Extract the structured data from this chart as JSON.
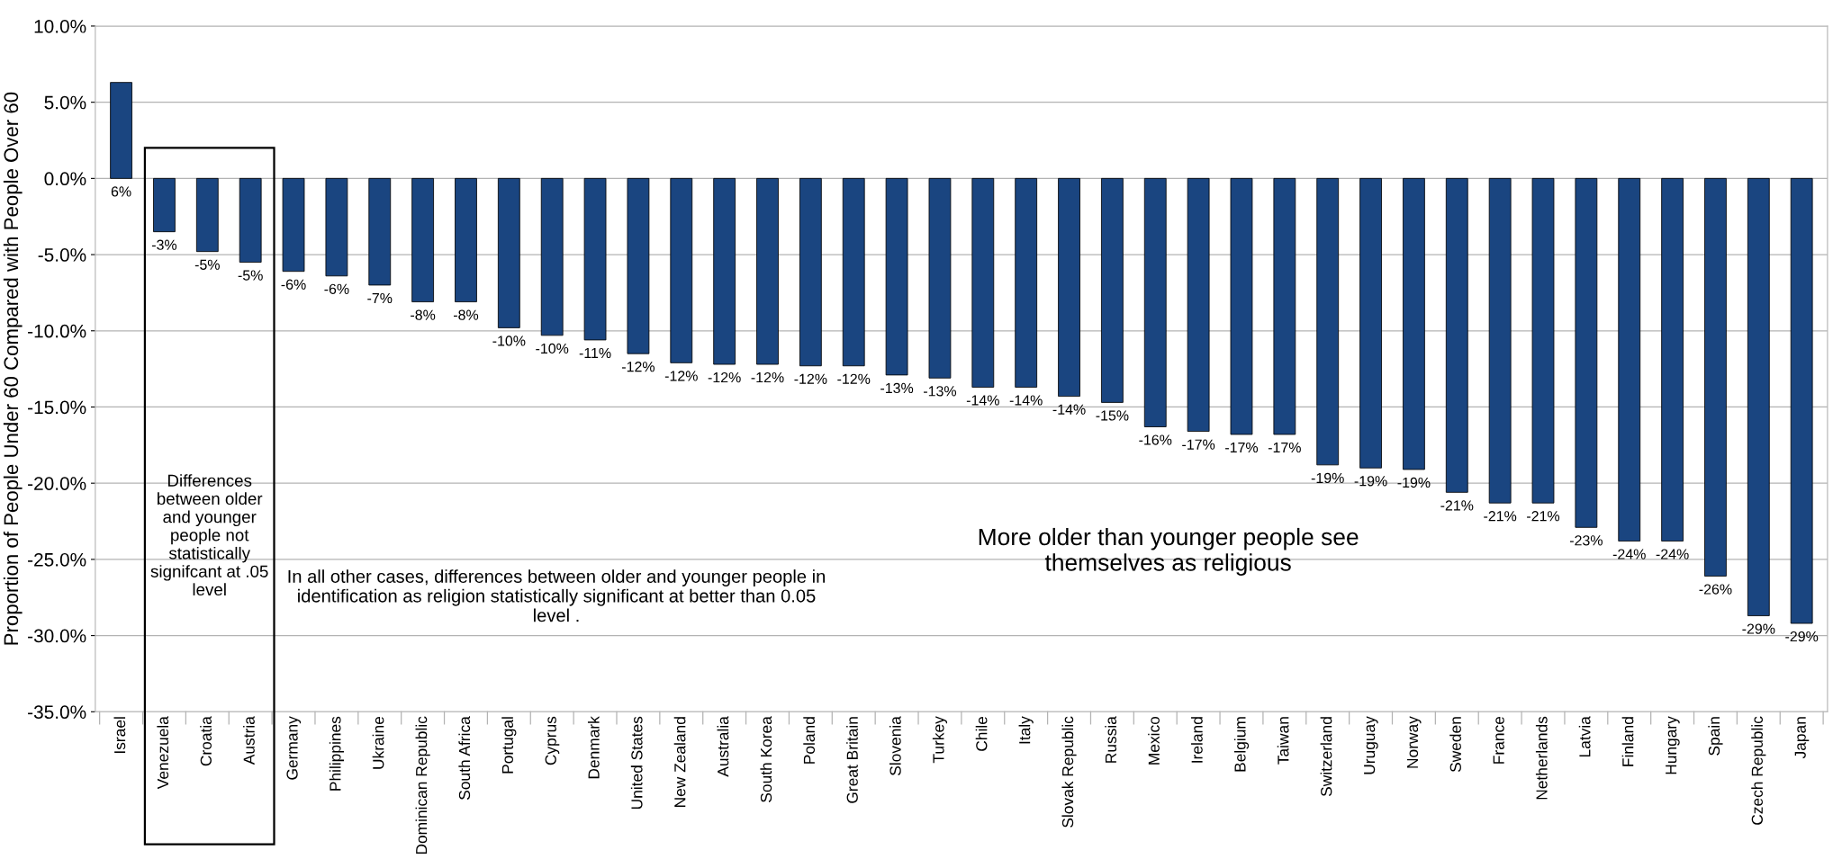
{
  "chart_data": {
    "type": "bar",
    "ylabel": "Proportion of People Under 60 Compared with People Over 60",
    "categories": [
      "Israel",
      "Venezuela",
      "Croatia",
      "Austria",
      "Germany",
      "Philippines",
      "Ukraine",
      "Dominican Republic",
      "South Africa",
      "Portugal",
      "Cyprus",
      "Denmark",
      "United States",
      "New Zealand",
      "Australia",
      "South Korea",
      "Poland",
      "Great Britain",
      "Slovenia",
      "Turkey",
      "Chile",
      "Italy",
      "Slovak Republic",
      "Russia",
      "Mexico",
      "Ireland",
      "Belgium",
      "Taiwan",
      "Switzerland",
      "Uruguay",
      "Norway",
      "Sweden",
      "France",
      "Netherlands",
      "Latvia",
      "Finland",
      "Hungary",
      "Spain",
      "Czech Republic",
      "Japan"
    ],
    "values": [
      6.3,
      -3.5,
      -4.8,
      -5.5,
      -6.1,
      -6.4,
      -7.0,
      -8.1,
      -8.1,
      -9.8,
      -10.3,
      -10.6,
      -11.5,
      -12.1,
      -12.2,
      -12.2,
      -12.3,
      -12.3,
      -12.9,
      -13.1,
      -13.7,
      -13.7,
      -14.3,
      -14.7,
      -16.3,
      -16.6,
      -16.8,
      -16.8,
      -18.8,
      -19.0,
      -19.1,
      -20.6,
      -21.3,
      -21.3,
      -22.9,
      -23.8,
      -23.8,
      -26.1,
      -28.7,
      -29.2
    ],
    "value_labels": [
      "6%",
      "-3%",
      "-5%",
      "-5%",
      "-6%",
      "-6%",
      "-7%",
      "-8%",
      "-8%",
      "-10%",
      "-10%",
      "-11%",
      "-12%",
      "-12%",
      "-12%",
      "-12%",
      "-12%",
      "-12%",
      "-13%",
      "-13%",
      "-14%",
      "-14%",
      "-14%",
      "-15%",
      "-16%",
      "-17%",
      "-17%",
      "-17%",
      "-19%",
      "-19%",
      "-19%",
      "-21%",
      "-21%",
      "-21%",
      "-23%",
      "-24%",
      "-24%",
      "-26%",
      "-29%",
      "-29%"
    ],
    "color": "#1a4580",
    "ylim": [
      -35,
      10
    ],
    "yticks": [
      {
        "value": -35,
        "label": "-35.0%"
      },
      {
        "value": -30,
        "label": "-30.0%"
      },
      {
        "value": -25,
        "label": "-25.0%"
      },
      {
        "value": -20,
        "label": "-20.0%"
      },
      {
        "value": -15,
        "label": "-15.0%"
      },
      {
        "value": -10,
        "label": "-10.0%"
      },
      {
        "value": -5,
        "label": "-5.0%"
      },
      {
        "value": 0,
        "label": "0.0%"
      },
      {
        "value": 5,
        "label": "5.0%"
      },
      {
        "value": 10,
        "label": "10.0%"
      }
    ],
    "grid": "y",
    "annotations": [
      "Differences between older and younger people not statistically signifcant at .05 level",
      "In all other cases, differences between older and younger people in identification as religion statistically significant at better than 0.05 level .",
      "More older than younger people see themselves as religious"
    ]
  }
}
